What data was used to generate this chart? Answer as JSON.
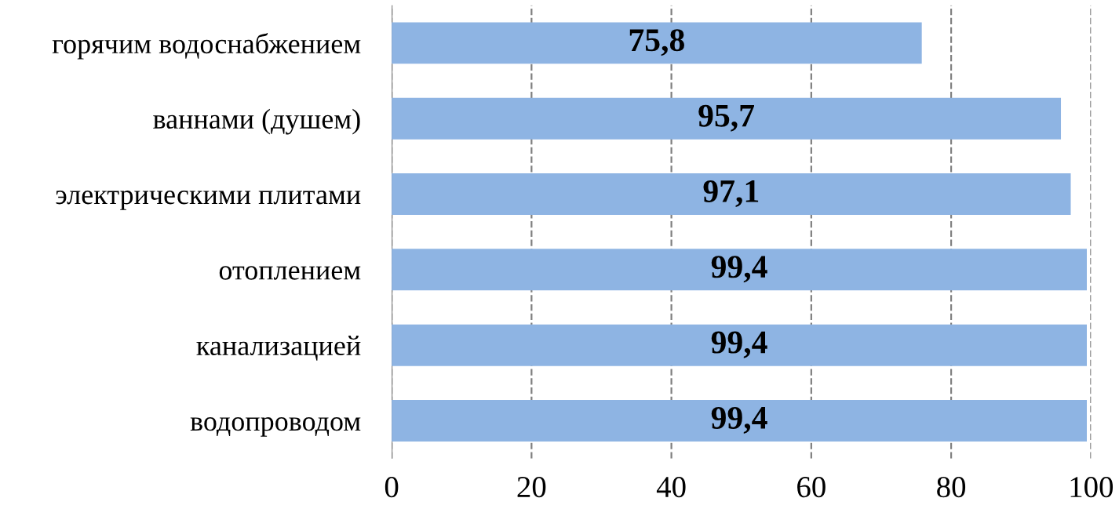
{
  "chart_data": {
    "type": "bar",
    "orientation": "horizontal",
    "categories": [
      "горячим водоснабжением",
      "ваннами (душем)",
      "электрическими плитами",
      "отоплением",
      "канализацией",
      "водопроводом"
    ],
    "values": [
      75.8,
      95.7,
      97.1,
      99.4,
      99.4,
      99.4
    ],
    "value_labels": [
      "75,8",
      "95,7",
      "97,1",
      "99,4",
      "99,4",
      "99,4"
    ],
    "color": "#8eb4e3",
    "xlim": [
      0,
      100
    ],
    "xticks": [
      0,
      20,
      40,
      60,
      80,
      100
    ],
    "grid": "x",
    "line_style": "dashed"
  }
}
